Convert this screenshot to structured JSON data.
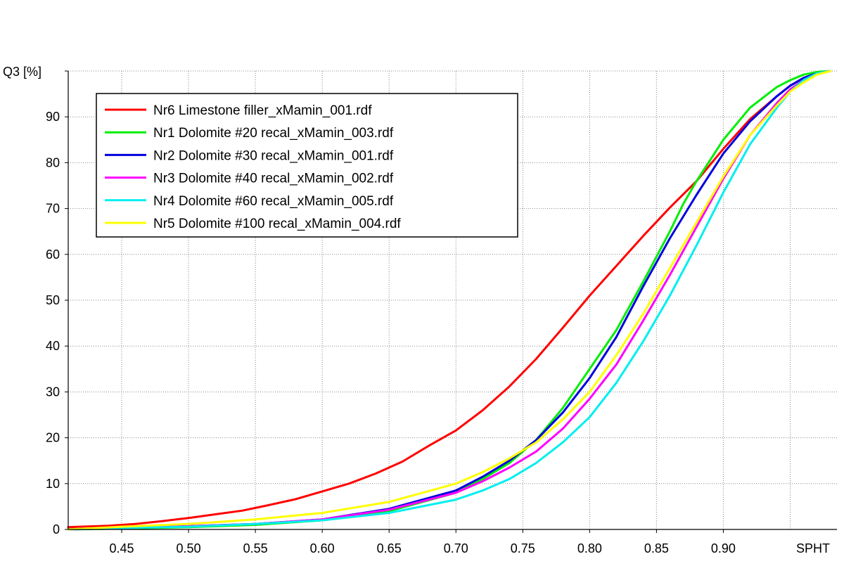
{
  "chart_data": {
    "type": "line",
    "title": "",
    "xlabel": "SPHT",
    "ylabel": "Q3 [%]",
    "xlim": [
      0.41,
      0.985
    ],
    "ylim": [
      0,
      100
    ],
    "xticks": [
      0.45,
      0.5,
      0.55,
      0.6,
      0.65,
      0.7,
      0.75,
      0.8,
      0.85,
      0.9
    ],
    "xtick_labels": [
      "0.45",
      "0.50",
      "0.55",
      "0.60",
      "0.65",
      "0.70",
      "0.75",
      "0.80",
      "0.85",
      "0.90"
    ],
    "yticks": [
      0,
      10,
      20,
      30,
      40,
      50,
      60,
      70,
      80,
      90
    ],
    "ytick_labels": [
      "0",
      "10",
      "20",
      "30",
      "40",
      "50",
      "60",
      "70",
      "80",
      "90"
    ],
    "grid": true,
    "legend_position": "top-left",
    "series": [
      {
        "name": "Nr6 Limestone filler_xMamin_001.rdf",
        "color": "#ff0000",
        "x": [
          0.41,
          0.44,
          0.46,
          0.48,
          0.5,
          0.52,
          0.54,
          0.56,
          0.58,
          0.6,
          0.62,
          0.64,
          0.66,
          0.68,
          0.7,
          0.72,
          0.74,
          0.76,
          0.78,
          0.8,
          0.82,
          0.84,
          0.86,
          0.88,
          0.9,
          0.92,
          0.94,
          0.95,
          0.96,
          0.97,
          0.98
        ],
        "y": [
          0.5,
          0.8,
          1.2,
          1.8,
          2.5,
          3.3,
          4.1,
          5.3,
          6.6,
          8.3,
          10.0,
          12.2,
          14.8,
          18.3,
          21.6,
          26.0,
          31.2,
          37.2,
          44.0,
          51.0,
          57.5,
          64.0,
          70.2,
          76.0,
          83.0,
          89.5,
          94.5,
          96.8,
          98.5,
          99.5,
          100.0
        ]
      },
      {
        "name": "Nr1 Dolomite #20 recal_xMamin_003.rdf",
        "color": "#00ee00",
        "x": [
          0.41,
          0.45,
          0.5,
          0.55,
          0.6,
          0.65,
          0.7,
          0.72,
          0.74,
          0.76,
          0.78,
          0.8,
          0.82,
          0.84,
          0.86,
          0.87,
          0.88,
          0.9,
          0.92,
          0.94,
          0.95,
          0.96,
          0.97,
          0.98
        ],
        "y": [
          0.0,
          0.2,
          0.5,
          1.0,
          2.0,
          4.0,
          8.0,
          11.0,
          14.5,
          19.5,
          26.5,
          35.0,
          43.5,
          54.0,
          65.0,
          71.0,
          76.0,
          85.0,
          92.0,
          96.5,
          98.0,
          99.2,
          99.8,
          100.0
        ]
      },
      {
        "name": "Nr2 Dolomite #30 recal_xMamin_001.rdf",
        "color": "#0000dd",
        "x": [
          0.41,
          0.45,
          0.5,
          0.55,
          0.6,
          0.65,
          0.7,
          0.72,
          0.74,
          0.76,
          0.78,
          0.8,
          0.82,
          0.84,
          0.86,
          0.88,
          0.9,
          0.92,
          0.94,
          0.95,
          0.96,
          0.97,
          0.98
        ],
        "y": [
          0.0,
          0.3,
          0.7,
          1.2,
          2.2,
          4.5,
          8.5,
          11.5,
          15.0,
          19.5,
          25.5,
          33.0,
          42.0,
          53.0,
          63.5,
          73.0,
          82.0,
          89.0,
          94.5,
          96.8,
          98.5,
          99.5,
          100.0
        ]
      },
      {
        "name": "Nr3 Dolomite #40 recal_xMamin_002.rdf",
        "color": "#ff00ff",
        "x": [
          0.41,
          0.45,
          0.5,
          0.55,
          0.6,
          0.65,
          0.7,
          0.72,
          0.74,
          0.76,
          0.78,
          0.8,
          0.82,
          0.84,
          0.86,
          0.88,
          0.9,
          0.92,
          0.94,
          0.95,
          0.96,
          0.97,
          0.98
        ],
        "y": [
          0.0,
          0.3,
          0.7,
          1.2,
          2.2,
          4.3,
          8.0,
          10.5,
          13.5,
          17.0,
          22.0,
          28.5,
          36.0,
          45.5,
          55.5,
          66.0,
          76.5,
          86.0,
          93.0,
          96.0,
          98.0,
          99.5,
          100.0
        ]
      },
      {
        "name": "Nr4 Dolomite #60 recal_xMamin_005.rdf",
        "color": "#00eeee",
        "x": [
          0.41,
          0.45,
          0.5,
          0.55,
          0.6,
          0.65,
          0.7,
          0.72,
          0.74,
          0.76,
          0.78,
          0.8,
          0.82,
          0.84,
          0.86,
          0.88,
          0.9,
          0.92,
          0.94,
          0.95,
          0.96,
          0.97,
          0.98
        ],
        "y": [
          0.0,
          0.3,
          0.6,
          1.2,
          2.0,
          3.6,
          6.5,
          8.5,
          11.0,
          14.5,
          19.0,
          24.5,
          32.0,
          41.0,
          51.0,
          62.0,
          73.5,
          84.0,
          92.0,
          95.5,
          98.0,
          99.5,
          100.0
        ]
      },
      {
        "name": "Nr5 Dolomite #100 recal_xMamin_004.rdf",
        "color": "#ffff00",
        "x": [
          0.41,
          0.45,
          0.5,
          0.55,
          0.6,
          0.65,
          0.7,
          0.72,
          0.74,
          0.76,
          0.78,
          0.8,
          0.82,
          0.84,
          0.86,
          0.88,
          0.9,
          0.92,
          0.94,
          0.95,
          0.96,
          0.97,
          0.98
        ],
        "y": [
          0.0,
          0.6,
          1.2,
          2.2,
          3.6,
          6.0,
          10.0,
          12.5,
          15.5,
          19.0,
          24.0,
          30.0,
          38.0,
          47.0,
          57.0,
          67.0,
          77.0,
          86.0,
          92.5,
          95.5,
          97.5,
          99.2,
          100.0
        ]
      }
    ]
  }
}
